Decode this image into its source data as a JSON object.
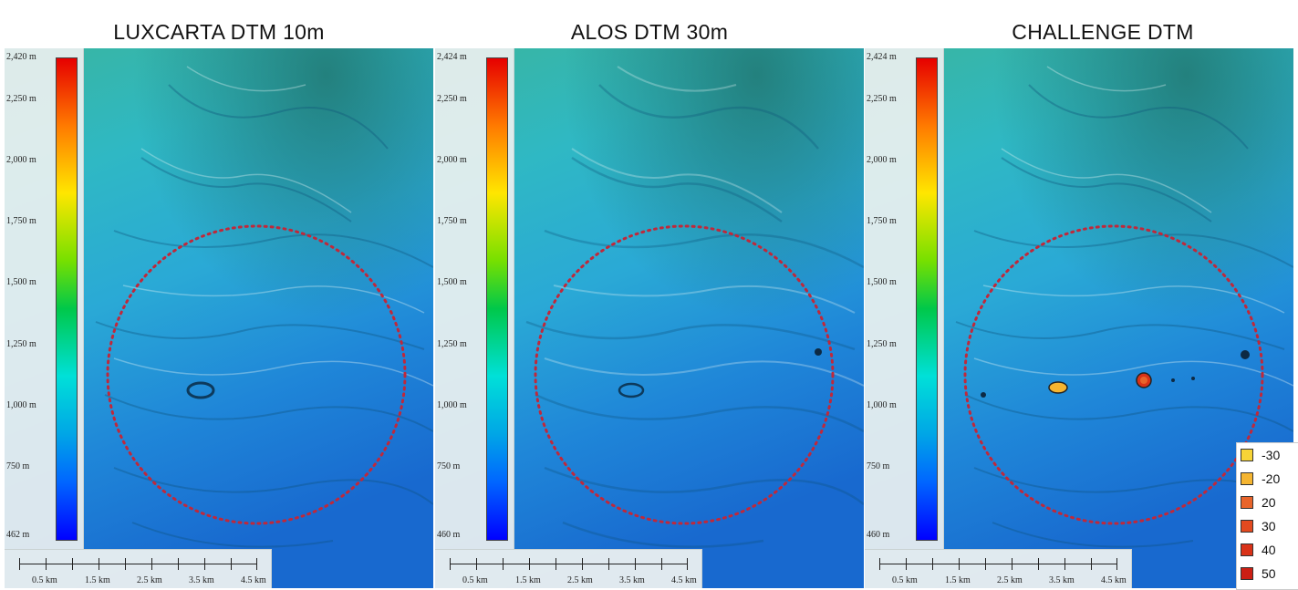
{
  "panels": [
    {
      "title": "LUXCARTA DTM 10m",
      "legend_ticks": [
        "2,420 m",
        "2,250 m",
        "2,000 m",
        "1,750 m",
        "1,500 m",
        "1,250 m",
        "1,000 m",
        "750 m",
        "462 m"
      ],
      "scale_labels": [
        "0.5 km",
        "1.5 km",
        "2.5 km",
        "3.5 km",
        "4.5 km"
      ]
    },
    {
      "title": "ALOS DTM 30m",
      "legend_ticks": [
        "2,424 m",
        "2,250 m",
        "2,000 m",
        "1,750 m",
        "1,500 m",
        "1,250 m",
        "1,000 m",
        "750 m",
        "460 m"
      ],
      "scale_labels": [
        "0.5 km",
        "1.5 km",
        "2.5 km",
        "3.5 km",
        "4.5 km"
      ]
    },
    {
      "title": "CHALLENGE DTM",
      "legend_ticks": [
        "2,424 m",
        "2,250 m",
        "2,000 m",
        "1,750 m",
        "1,500 m",
        "1,250 m",
        "1,000 m",
        "750 m",
        "460 m"
      ],
      "scale_labels": [
        "0.5 km",
        "1.5 km",
        "2.5 km",
        "3.5 km",
        "4.5 km"
      ]
    }
  ],
  "anomaly_legend": [
    {
      "label": "-30",
      "color": "#f7d436"
    },
    {
      "label": "-20",
      "color": "#f5b531"
    },
    {
      "label": "20",
      "color": "#e8642a"
    },
    {
      "label": "30",
      "color": "#e34a1f"
    },
    {
      "label": "40",
      "color": "#d93218"
    },
    {
      "label": "50",
      "color": "#cc1f14"
    }
  ],
  "colors": {
    "circle": "#c0283a",
    "ramp_top": "#e60000",
    "ramp_bottom": "#0000ff"
  }
}
